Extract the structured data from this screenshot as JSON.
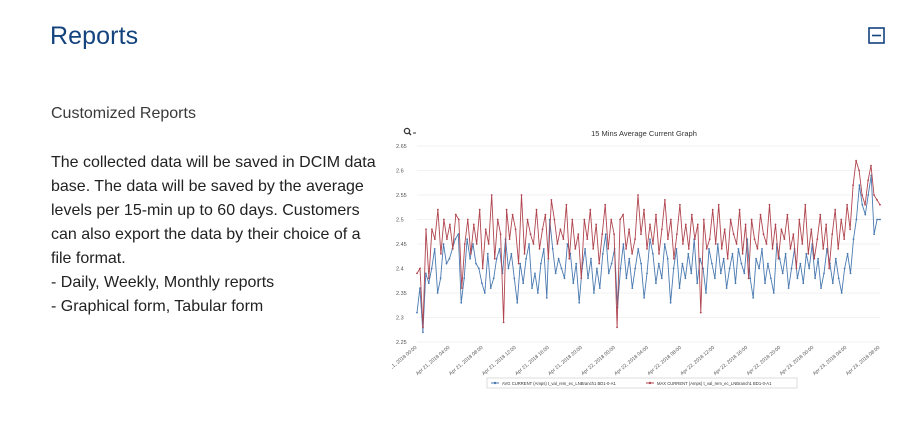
{
  "header": {
    "title": "Reports",
    "collapse_icon": "collapse-square-icon"
  },
  "content": {
    "subtitle": "Customized Reports",
    "description_lines": [
      "The collected data will be saved in DCIM data",
      "base. The data will be saved by the average",
      "levels per 15-min up to 60 days. Customers",
      "can also export the data by their choice of a",
      "file format.",
      "- Daily, Weekly, Monthly reports",
      "- Graphical form, Tabular form"
    ]
  },
  "colors": {
    "title": "#14437e",
    "avg_series": "#4a7ab0",
    "max_series": "#b0454f"
  },
  "chart_data": {
    "type": "line",
    "title": "15 Mins Average Current Graph",
    "zoom_icon": "zoom-magnifier-icon",
    "ylim": [
      2.25,
      2.65
    ],
    "y_ticks": [
      "2.25",
      "2.3",
      "2.35",
      "2.4",
      "2.45",
      "2.5",
      "2.55",
      "2.6",
      "2.65"
    ],
    "x_ticks": [
      "Apr 21, 2018 00:00",
      "Apr 21, 2018 04:00",
      "Apr 21, 2018 08:00",
      "Apr 21, 2018 12:00",
      "Apr 21, 2018 16:00",
      "Apr 21, 2018 20:00",
      "Apr 22, 2018 00:00",
      "Apr 22, 2018 04:00",
      "Apr 22, 2018 08:00",
      "Apr 22, 2018 12:00",
      "Apr 22, 2018 16:00",
      "Apr 22, 2018 20:00",
      "Apr 23, 2018 00:00",
      "Apr 23, 2018 04:00",
      "Apr 23, 2018 08:00"
    ],
    "series": [
      {
        "name": "AVG CURRENT (Amps) t_val_rem_ec_LNBranch1 BD1-0-A1",
        "color": "#4a7ab0",
        "values": [
          2.31,
          2.36,
          2.27,
          2.39,
          2.37,
          2.4,
          2.44,
          2.35,
          2.38,
          2.45,
          2.41,
          2.42,
          2.44,
          2.46,
          2.47,
          2.33,
          2.38,
          2.46,
          2.42,
          2.45,
          2.41,
          2.4,
          2.37,
          2.35,
          2.43,
          2.36,
          2.38,
          2.42,
          2.44,
          2.39,
          2.46,
          2.4,
          2.43,
          2.38,
          2.33,
          2.41,
          2.37,
          2.42,
          2.45,
          2.36,
          2.39,
          2.35,
          2.41,
          2.44,
          2.34,
          2.5,
          2.44,
          2.39,
          2.42,
          2.4,
          2.38,
          2.45,
          2.43,
          2.37,
          2.41,
          2.33,
          2.4,
          2.44,
          2.38,
          2.42,
          2.35,
          2.4,
          2.36,
          2.43,
          2.47,
          2.39,
          2.41,
          2.44,
          2.32,
          2.4,
          2.45,
          2.38,
          2.42,
          2.36,
          2.4,
          2.44,
          2.41,
          2.34,
          2.39,
          2.46,
          2.43,
          2.37,
          2.41,
          2.38,
          2.45,
          2.42,
          2.33,
          2.4,
          2.44,
          2.36,
          2.41,
          2.38,
          2.43,
          2.39,
          2.46,
          2.37,
          2.42,
          2.4,
          2.35,
          2.44,
          2.41,
          2.38,
          2.45,
          2.39,
          2.42,
          2.36,
          2.4,
          2.43,
          2.37,
          2.44,
          2.41,
          2.39,
          2.46,
          2.38,
          2.34,
          2.42,
          2.4,
          2.44,
          2.37,
          2.41,
          2.38,
          2.35,
          2.45,
          2.42,
          2.39,
          2.43,
          2.36,
          2.4,
          2.44,
          2.38,
          2.41,
          2.37,
          2.43,
          2.4,
          2.45,
          2.38,
          2.42,
          2.36,
          2.39,
          2.44,
          2.41,
          2.37,
          2.42,
          2.38,
          2.35,
          2.4,
          2.43,
          2.39,
          2.46,
          2.5,
          2.57,
          2.53,
          2.51,
          2.55,
          2.59,
          2.47,
          2.5,
          2.5
        ]
      },
      {
        "name": "MAX CURRENT (Amps) t_val_rem_ec_LNBranch1 BD1-0-A1",
        "color": "#b0454f",
        "values": [
          2.39,
          2.4,
          2.28,
          2.48,
          2.38,
          2.48,
          2.46,
          2.52,
          2.43,
          2.5,
          2.46,
          2.49,
          2.44,
          2.51,
          2.5,
          2.36,
          2.45,
          2.5,
          2.43,
          2.49,
          2.45,
          2.52,
          2.4,
          2.48,
          2.45,
          2.55,
          2.42,
          2.5,
          2.47,
          2.29,
          2.52,
          2.46,
          2.51,
          2.48,
          2.41,
          2.55,
          2.43,
          2.5,
          2.47,
          2.45,
          2.52,
          2.44,
          2.48,
          2.51,
          2.42,
          2.54,
          2.5,
          2.45,
          2.48,
          2.46,
          2.53,
          2.42,
          2.5,
          2.44,
          2.47,
          2.38,
          2.5,
          2.46,
          2.52,
          2.44,
          2.49,
          2.41,
          2.47,
          2.53,
          2.44,
          2.5,
          2.47,
          2.28,
          2.5,
          2.51,
          2.44,
          2.48,
          2.43,
          2.46,
          2.55,
          2.47,
          2.52,
          2.44,
          2.49,
          2.45,
          2.51,
          2.43,
          2.48,
          2.54,
          2.46,
          2.5,
          2.42,
          2.47,
          2.53,
          2.45,
          2.49,
          2.44,
          2.51,
          2.46,
          2.49,
          2.31,
          2.5,
          2.44,
          2.46,
          2.52,
          2.45,
          2.53,
          2.44,
          2.48,
          2.42,
          2.5,
          2.47,
          2.45,
          2.52,
          2.43,
          2.49,
          2.38,
          2.5,
          2.46,
          2.44,
          2.51,
          2.47,
          2.45,
          2.53,
          2.44,
          2.49,
          2.42,
          2.48,
          2.46,
          2.51,
          2.44,
          2.47,
          2.4,
          2.5,
          2.45,
          2.53,
          2.43,
          2.48,
          2.42,
          2.46,
          2.51,
          2.44,
          2.49,
          2.4,
          2.47,
          2.52,
          2.44,
          2.5,
          2.46,
          2.53,
          2.48,
          2.57,
          2.62,
          2.6,
          2.55,
          2.53,
          2.58,
          2.61,
          2.55,
          2.54,
          2.53
        ]
      }
    ],
    "legend_position": "bottom"
  }
}
